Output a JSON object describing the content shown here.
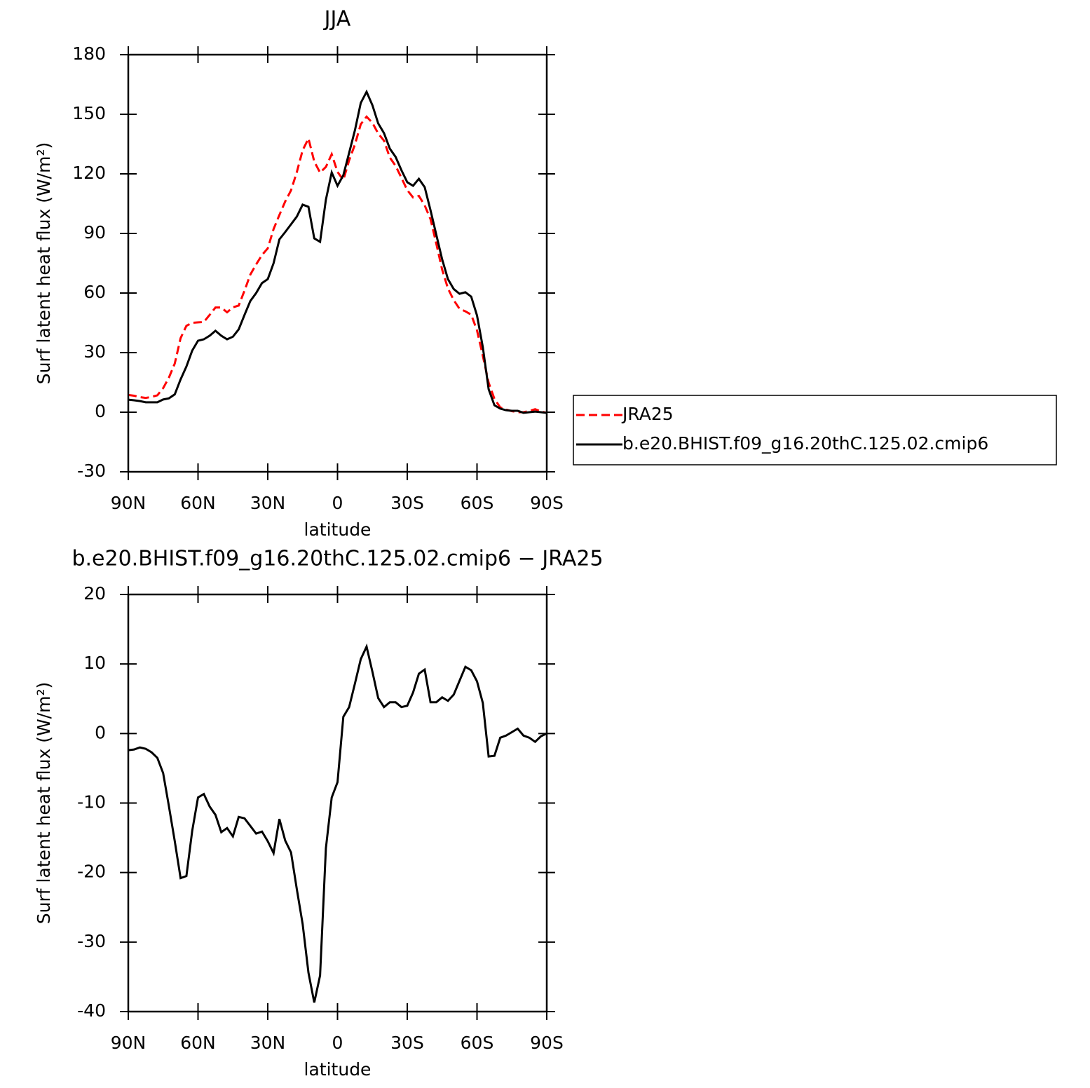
{
  "chart_data": [
    {
      "type": "line",
      "title": "JJA",
      "x_label": "latitude",
      "y_label": "Surf latent heat flux (W/m²)",
      "x": [
        90,
        87.5,
        85,
        82.5,
        80,
        77.5,
        75,
        72.5,
        70,
        67.5,
        65,
        62.5,
        60,
        57.5,
        55,
        52.5,
        50,
        47.5,
        45,
        42.5,
        40,
        37.5,
        35,
        32.5,
        30,
        27.5,
        25,
        22.5,
        20,
        17.5,
        15,
        12.5,
        10,
        7.5,
        5,
        2.5,
        0,
        -2.5,
        -5,
        -7.5,
        -10,
        -12.5,
        -15,
        -17.5,
        -20,
        -22.5,
        -25,
        -27.5,
        -30,
        -32.5,
        -35,
        -37.5,
        -40,
        -42.5,
        -45,
        -47.5,
        -50,
        -52.5,
        -55,
        -57.5,
        -60,
        -62.5,
        -65,
        -67.5,
        -70,
        -72.5,
        -75,
        -77.5,
        -80,
        -82.5,
        -85,
        -87.5,
        -90
      ],
      "series": [
        {
          "name": "JRA25",
          "color": "#ff0000",
          "style": "dashed",
          "values": [
            8.7,
            8.3,
            7.6,
            7.2,
            7.7,
            8.5,
            12.1,
            17.5,
            24.5,
            37.3,
            43.5,
            45,
            45.2,
            45.4,
            49,
            52.7,
            52.7,
            50.3,
            52.8,
            53.7,
            61.2,
            69.3,
            74.4,
            79.1,
            82.5,
            92.2,
            99.3,
            106.1,
            111.7,
            120.9,
            131.9,
            137.8,
            126.2,
            120.6,
            123.5,
            129.9,
            121,
            116.9,
            126.8,
            134.8,
            145,
            148.8,
            145.7,
            140.3,
            136.7,
            128.2,
            124,
            118,
            111.8,
            108.1,
            108.9,
            104.1,
            97.2,
            84.8,
            71.8,
            62.3,
            56.4,
            52,
            50.8,
            49.1,
            41.2,
            28.4,
            14.9,
            6.7,
            2.4,
            1.3,
            0.5,
            0,
            0,
            0.6,
            1.5,
            0.4,
            -0.3
          ]
        },
        {
          "name": "b.e20.BHIST.f09_g16.20thC.125.02.cmip6",
          "color": "#000000",
          "style": "solid",
          "values": [
            6.3,
            6,
            5.6,
            5,
            5,
            5,
            6.4,
            7,
            9,
            16.5,
            23,
            31,
            36,
            36.7,
            38.5,
            41,
            38.5,
            36.7,
            38,
            41.7,
            49,
            56,
            60,
            65,
            67,
            75,
            87,
            90.7,
            94.6,
            98.5,
            104.5,
            103.4,
            87.5,
            85.8,
            107,
            120.7,
            114,
            119.3,
            130.6,
            142,
            155.7,
            161.3,
            154.6,
            145.4,
            140.5,
            132.7,
            128.5,
            121.8,
            115.8,
            114,
            117.5,
            113.3,
            101.7,
            89.3,
            77,
            67,
            62,
            59.6,
            60.4,
            58.2,
            48.7,
            32.8,
            11.6,
            3.5,
            1.8,
            1,
            0.7,
            0.7,
            -0.3,
            0,
            0.3,
            0,
            -0.3
          ]
        }
      ],
      "xlim": [
        90,
        -90
      ],
      "xticks": [
        {
          "value": 90,
          "label": "90N"
        },
        {
          "value": 60,
          "label": "60N"
        },
        {
          "value": 30,
          "label": "30N"
        },
        0,
        {
          "value": -30,
          "label": "30S"
        },
        {
          "value": -60,
          "label": "60S"
        },
        {
          "value": -90,
          "label": "90S"
        }
      ],
      "ylim": [
        -30,
        180
      ],
      "yticks": [
        -30,
        0,
        30,
        60,
        90,
        120,
        150,
        180
      ],
      "legend": "right"
    },
    {
      "type": "line",
      "title": "b.e20.BHIST.f09_g16.20thC.125.02.cmip6 − JRA25",
      "x_label": "latitude",
      "y_label": "Surf latent heat flux (W/m²)",
      "x": [
        90,
        87.5,
        85,
        82.5,
        80,
        77.5,
        75,
        72.5,
        70,
        67.5,
        65,
        62.5,
        60,
        57.5,
        55,
        52.5,
        50,
        47.5,
        45,
        42.5,
        40,
        37.5,
        35,
        32.5,
        30,
        27.5,
        25,
        22.5,
        20,
        17.5,
        15,
        12.5,
        10,
        7.5,
        5,
        2.5,
        0,
        -2.5,
        -5,
        -7.5,
        -10,
        -12.5,
        -15,
        -17.5,
        -20,
        -22.5,
        -25,
        -27.5,
        -30,
        -32.5,
        -35,
        -37.5,
        -40,
        -42.5,
        -45,
        -47.5,
        -50,
        -52.5,
        -55,
        -57.5,
        -60,
        -62.5,
        -65,
        -67.5,
        -70,
        -72.5,
        -75,
        -77.5,
        -80,
        -82.5,
        -85,
        -87.5,
        -90
      ],
      "series": [
        {
          "color": "#000000",
          "style": "solid",
          "values": [
            -2.4,
            -2.3,
            -2,
            -2.2,
            -2.7,
            -3.5,
            -5.7,
            -10.5,
            -15.5,
            -20.8,
            -20.5,
            -14,
            -9.2,
            -8.7,
            -10.5,
            -11.7,
            -14.2,
            -13.6,
            -14.8,
            -12,
            -12.2,
            -13.3,
            -14.4,
            -14.1,
            -15.5,
            -17.2,
            -12.3,
            -15.4,
            -17.1,
            -22.4,
            -27.4,
            -34.4,
            -38.7,
            -34.8,
            -16.5,
            -9.2,
            -7,
            2.4,
            3.8,
            7.2,
            10.7,
            12.5,
            8.9,
            5.1,
            3.8,
            4.5,
            4.5,
            3.8,
            4,
            5.9,
            8.6,
            9.2,
            4.5,
            4.5,
            5.2,
            4.7,
            5.6,
            7.6,
            9.6,
            9.1,
            7.5,
            4.4,
            -3.3,
            -3.2,
            -0.6,
            -0.3,
            0.2,
            0.7,
            -0.3,
            -0.6,
            -1.2,
            -0.4,
            0
          ]
        }
      ],
      "xlim": [
        90,
        -90
      ],
      "xticks": [
        {
          "value": 90,
          "label": "90N"
        },
        {
          "value": 60,
          "label": "60N"
        },
        {
          "value": 30,
          "label": "30N"
        },
        0,
        {
          "value": -30,
          "label": "30S"
        },
        {
          "value": -60,
          "label": "60S"
        },
        {
          "value": -90,
          "label": "90S"
        }
      ],
      "ylim": [
        -40,
        20
      ],
      "yticks": [
        -40,
        -30,
        -20,
        -10,
        0,
        10,
        20
      ]
    }
  ]
}
